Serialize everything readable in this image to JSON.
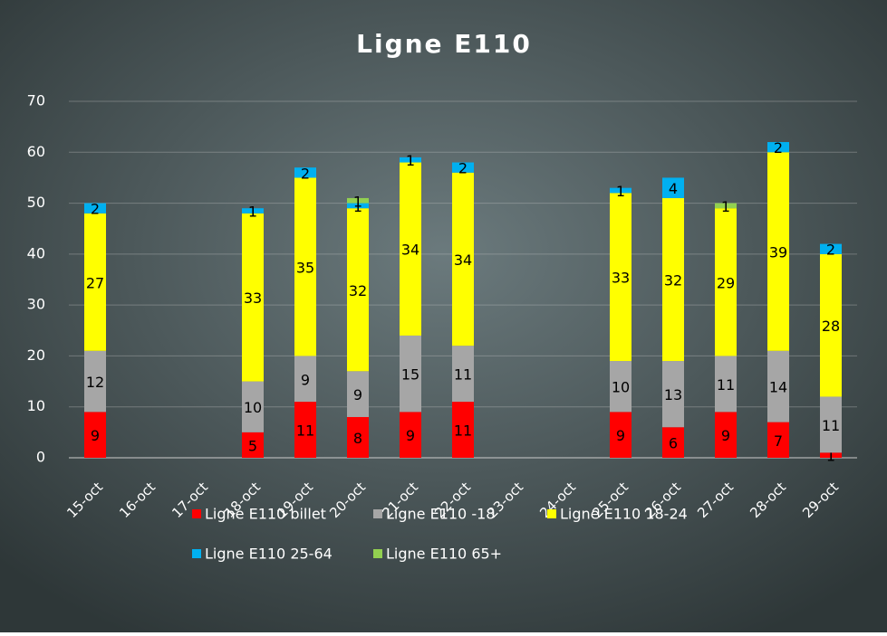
{
  "chart_data": {
    "type": "stacked_bar",
    "title": "Ligne E110",
    "categories": [
      "15-oct",
      "16-oct",
      "17-oct",
      "18-oct",
      "19-oct",
      "20-oct",
      "21-oct",
      "22-oct",
      "23-oct",
      "24-oct",
      "25-oct",
      "26-oct",
      "27-oct",
      "28-oct",
      "29-oct"
    ],
    "series": [
      {
        "name": "Ligne E110 billet",
        "color": "#ff0000",
        "values": [
          9,
          null,
          null,
          5,
          11,
          8,
          9,
          11,
          null,
          null,
          9,
          6,
          9,
          7,
          1
        ]
      },
      {
        "name": "Ligne E110 -18",
        "color": "#a6a6a6",
        "values": [
          12,
          null,
          null,
          10,
          9,
          9,
          15,
          11,
          null,
          null,
          10,
          13,
          11,
          14,
          11
        ]
      },
      {
        "name": "Ligne E110 18-24",
        "color": "#ffff00",
        "values": [
          27,
          null,
          null,
          33,
          35,
          32,
          34,
          34,
          null,
          null,
          33,
          32,
          29,
          39,
          28
        ]
      },
      {
        "name": "Ligne E110 25-64",
        "color": "#00b0f0",
        "values": [
          2,
          null,
          null,
          1,
          2,
          1,
          1,
          2,
          null,
          null,
          1,
          4,
          null,
          2,
          2
        ]
      },
      {
        "name": "Ligne E110 65+",
        "color": "#92d050",
        "values": [
          null,
          null,
          null,
          null,
          null,
          1,
          null,
          null,
          null,
          null,
          null,
          null,
          1,
          null,
          null
        ]
      }
    ],
    "ylim": [
      0,
      70
    ],
    "yticks": [
      0,
      10,
      20,
      30,
      40,
      50,
      60,
      70
    ],
    "grid": true,
    "legend": "bottom"
  }
}
